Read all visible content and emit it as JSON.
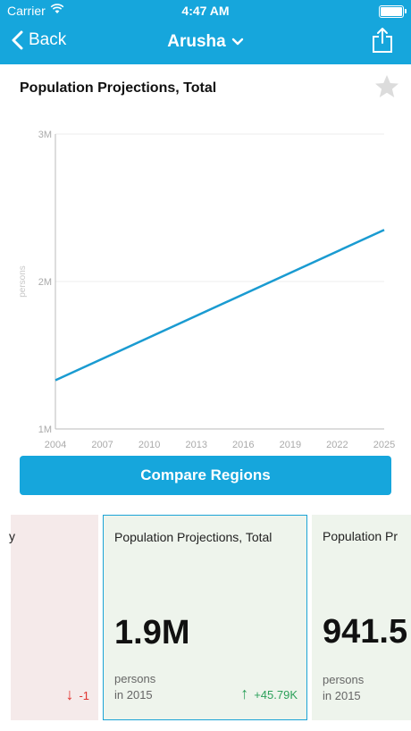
{
  "status_bar": {
    "carrier": "Carrier",
    "time": "4:47 AM"
  },
  "nav": {
    "back_label": "Back",
    "title": "Arusha"
  },
  "indicator": {
    "title": "Population Projections, Total"
  },
  "chart_data": {
    "type": "line",
    "title": "",
    "ylabel": "persons",
    "ylim": [
      1000000,
      3000000
    ],
    "yticks": [
      "1M",
      "2M",
      "3M"
    ],
    "xlim": [
      2004,
      2025
    ],
    "xticks": [
      "2004",
      "2007",
      "2010",
      "2013",
      "2016",
      "2019",
      "2022",
      "2025"
    ],
    "series": [
      {
        "color": "#1a9bd1",
        "x": [
          2004,
          2025
        ],
        "y": [
          1330000,
          2350000
        ]
      }
    ]
  },
  "compare_button": {
    "label": "Compare Regions"
  },
  "cards": [
    {
      "title": "y",
      "value": "",
      "unit_line1": "",
      "unit_line2": "",
      "change": "-1",
      "change_dir": "down"
    },
    {
      "title": "Population Projections, Total",
      "value": "1.9M",
      "unit_line1": "persons",
      "unit_line2": "in 2015",
      "change": "+45.79K",
      "change_dir": "up"
    },
    {
      "title": "Population Pr",
      "value": "941.5",
      "unit_line1": "persons",
      "unit_line2": "in 2015",
      "change": "",
      "change_dir": ""
    }
  ],
  "colors": {
    "brand": "#16a6dc",
    "down": "#e0322e",
    "up": "#2ca05a"
  }
}
